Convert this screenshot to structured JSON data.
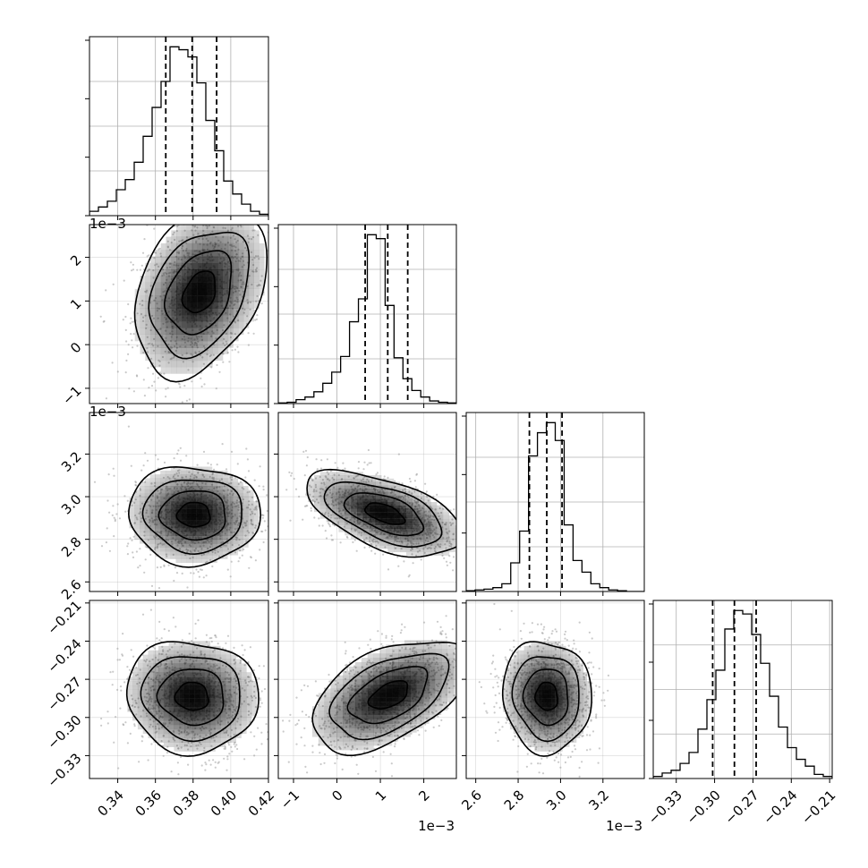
{
  "chart_data": {
    "type": "corner",
    "grid": true,
    "parameters": [
      {
        "range": [
          0.325,
          0.42
        ],
        "ticks": [
          "0.34",
          "0.36",
          "0.38",
          "0.40",
          "0.42"
        ],
        "tick_values": [
          0.34,
          0.36,
          0.38,
          0.4,
          0.42
        ],
        "offset_text": ""
      },
      {
        "range": [
          -1.35,
          2.75
        ],
        "ticks": [
          "−1",
          "0",
          "1",
          "2"
        ],
        "tick_values": [
          -1,
          0,
          1,
          2
        ],
        "offset_text": "1e−3"
      },
      {
        "range": [
          2.555,
          3.395
        ],
        "ticks": [
          "2.6",
          "2.8",
          "3.0",
          "3.2"
        ],
        "tick_values": [
          2.6,
          2.8,
          3.0,
          3.2
        ],
        "offset_text": "1e−3"
      },
      {
        "range": [
          -0.348,
          -0.208
        ],
        "ticks": [
          "−0.33",
          "−0.30",
          "−0.27",
          "−0.24",
          "−0.21"
        ],
        "tick_values": [
          -0.33,
          -0.3,
          -0.27,
          -0.24,
          -0.21
        ],
        "offset_text": ""
      }
    ],
    "diagonal_histograms": [
      {
        "bin_edges_range": [
          0.325,
          0.42
        ],
        "counts": [
          3,
          6,
          10,
          18,
          25,
          37,
          55,
          75,
          93,
          117,
          115,
          110,
          92,
          66,
          45,
          24,
          15,
          8,
          3,
          1
        ],
        "quantiles": [
          0.3655,
          0.3795,
          0.3925
        ]
      },
      {
        "bin_edges_range": [
          -1.35,
          2.75
        ],
        "counts": [
          1,
          2,
          6,
          10,
          18,
          31,
          48,
          72,
          125,
          160,
          258,
          252,
          150,
          70,
          38,
          20,
          10,
          4,
          2,
          1
        ],
        "quantiles": [
          0.65,
          1.17,
          1.63
        ]
      },
      {
        "bin_edges_range": [
          2.555,
          3.395
        ],
        "counts": [
          1,
          2,
          3,
          5,
          10,
          37,
          78,
          175,
          205,
          218,
          195,
          86,
          40,
          25,
          10,
          5,
          2,
          1,
          0,
          0
        ],
        "quantiles": [
          2.853,
          2.935,
          3.007
        ]
      },
      {
        "bin_edges_range": [
          -0.348,
          -0.208
        ],
        "counts": [
          3,
          8,
          12,
          22,
          38,
          72,
          115,
          158,
          218,
          245,
          240,
          210,
          168,
          120,
          75,
          45,
          28,
          18,
          6,
          3
        ],
        "quantiles": [
          -0.3015,
          -0.2845,
          -0.2675
        ]
      }
    ],
    "pair_contours": [
      {
        "x_param": 0,
        "y_param": 1,
        "center": [
          0.3835,
          1.2
        ],
        "spread": [
          0.0175,
          0.95
        ],
        "rho": 0.32
      },
      {
        "x_param": 0,
        "y_param": 2,
        "center": [
          0.3805,
          2.915
        ],
        "spread": [
          0.0175,
          0.115
        ],
        "rho": -0.02
      },
      {
        "x_param": 1,
        "y_param": 2,
        "center": [
          1.1,
          2.92
        ],
        "spread": [
          0.9,
          0.1
        ],
        "rho": -0.55
      },
      {
        "x_param": 0,
        "y_param": 3,
        "center": [
          0.3795,
          -0.2835
        ],
        "spread": [
          0.0175,
          0.022
        ],
        "rho": -0.05
      },
      {
        "x_param": 1,
        "y_param": 3,
        "center": [
          1.2,
          -0.2825
        ],
        "spread": [
          0.9,
          0.022
        ],
        "rho": 0.5
      },
      {
        "x_param": 2,
        "y_param": 3,
        "center": [
          2.935,
          -0.2835
        ],
        "spread": [
          0.105,
          0.022
        ],
        "rho": -0.05
      }
    ],
    "contour_levels_sigma": [
      0.5,
      1.0,
      1.5,
      2.0
    ]
  },
  "colors": {
    "line": "#000000",
    "grid": "#b0b0b0",
    "scatter": "#9e9e9e",
    "density": "#000000"
  }
}
